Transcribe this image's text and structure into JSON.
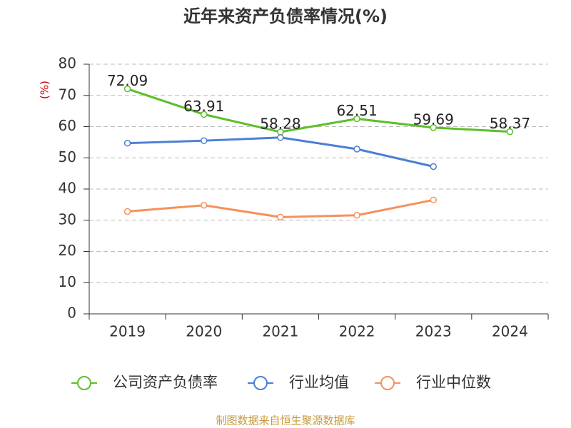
{
  "chart_data": {
    "type": "line",
    "title": "近年来资产负债率情况(%)",
    "y_label": "(%)",
    "categories": [
      "2019",
      "2020",
      "2021",
      "2022",
      "2023",
      "2024"
    ],
    "series": [
      {
        "name": "公司资产负债率",
        "color": "#5cbf2a",
        "values": [
          72.09,
          63.91,
          58.28,
          62.51,
          59.69,
          58.37
        ],
        "data_labels": true
      },
      {
        "name": "行业均值",
        "color": "#4a7fd6",
        "values": [
          54.7,
          55.5,
          56.5,
          52.8,
          47.2,
          null
        ],
        "data_labels": false
      },
      {
        "name": "行业中位数",
        "color": "#f5915c",
        "values": [
          32.8,
          34.8,
          31.0,
          31.6,
          36.5,
          null
        ],
        "data_labels": false
      }
    ],
    "ylim": [
      0,
      80
    ],
    "yticks": [
      0,
      10,
      20,
      30,
      40,
      50,
      60,
      70,
      80
    ],
    "grid": true,
    "source": "制图数据来自恒生聚源数据库"
  }
}
